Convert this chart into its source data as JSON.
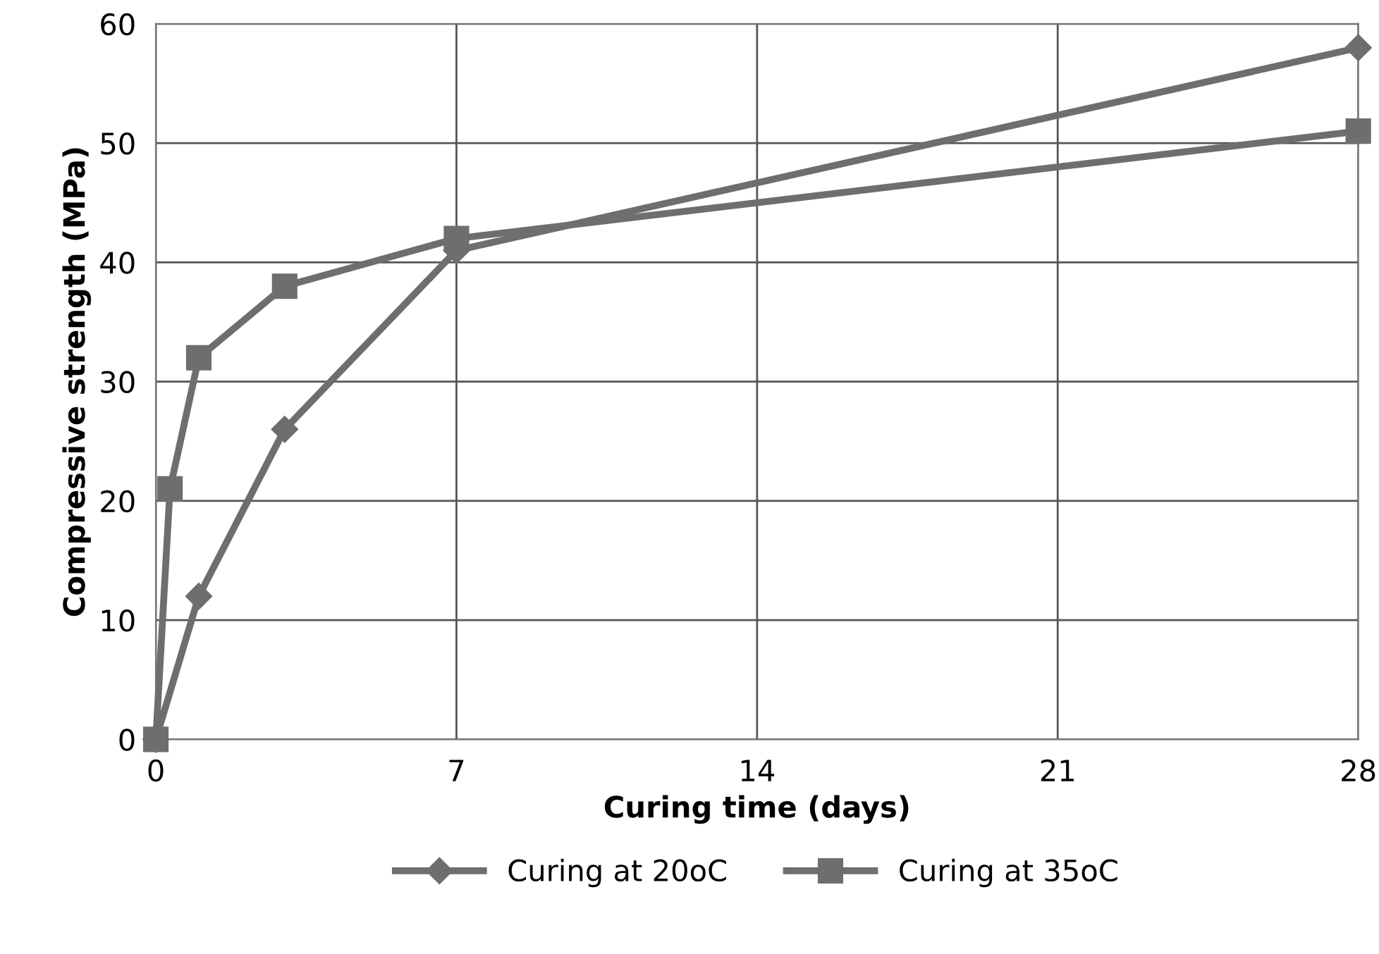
{
  "chart_data": {
    "type": "line",
    "xlabel": "Curing time (days)",
    "ylabel": "Compressive strength (MPa)",
    "xlim": [
      0,
      28
    ],
    "xticks": [
      0,
      7,
      14,
      21,
      28
    ],
    "ylim": [
      0,
      60
    ],
    "yticks": [
      0,
      10,
      20,
      30,
      40,
      50,
      60
    ],
    "grid": true,
    "legend": "bottom",
    "line_style": "solid",
    "series": [
      {
        "name": "Curing at 20oC",
        "color": "#6e6e6e",
        "marker": "diamond",
        "x": [
          0,
          1,
          3,
          7,
          28
        ],
        "values": [
          0,
          12,
          26,
          41,
          58
        ]
      },
      {
        "name": "Curing at 35oC",
        "color": "#6e6e6e",
        "marker": "square",
        "x": [
          0,
          0.33,
          1,
          3,
          7,
          28
        ],
        "values": [
          0,
          21,
          32,
          38,
          42,
          51
        ]
      }
    ]
  }
}
